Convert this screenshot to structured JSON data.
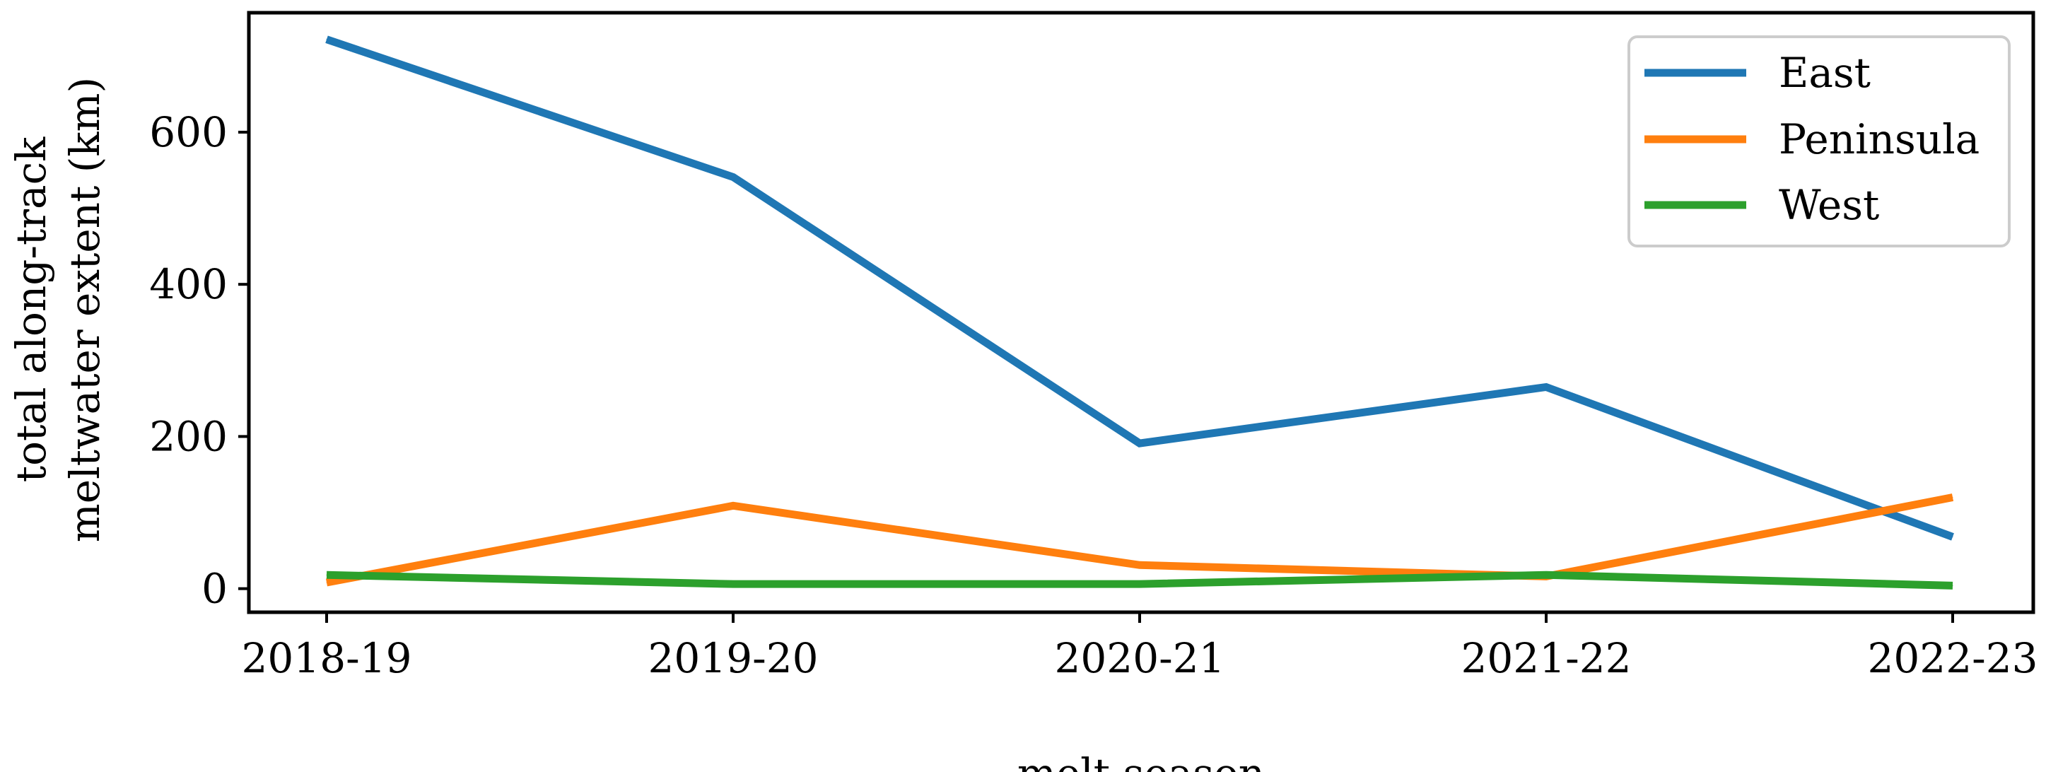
{
  "chart_data": {
    "type": "line",
    "categories": [
      "2018-19",
      "2019-20",
      "2020-21",
      "2021-22",
      "2022-23"
    ],
    "series": [
      {
        "name": "East",
        "color": "#1f77b4",
        "values": [
          722,
          541,
          191,
          265,
          68
        ]
      },
      {
        "name": "Peninsula",
        "color": "#ff7f0e",
        "values": [
          8,
          109,
          31,
          16,
          120
        ]
      },
      {
        "name": "West",
        "color": "#2ca02c",
        "values": [
          18,
          6,
          6,
          18,
          4
        ]
      }
    ],
    "xlabel": "melt season",
    "ylabel_lines": [
      "total along-track",
      "meltwater extent (km)"
    ],
    "yticks": [
      0,
      200,
      400,
      600
    ],
    "ylim": [
      -31,
      757
    ],
    "grid": false,
    "legend_position": "top-right"
  }
}
